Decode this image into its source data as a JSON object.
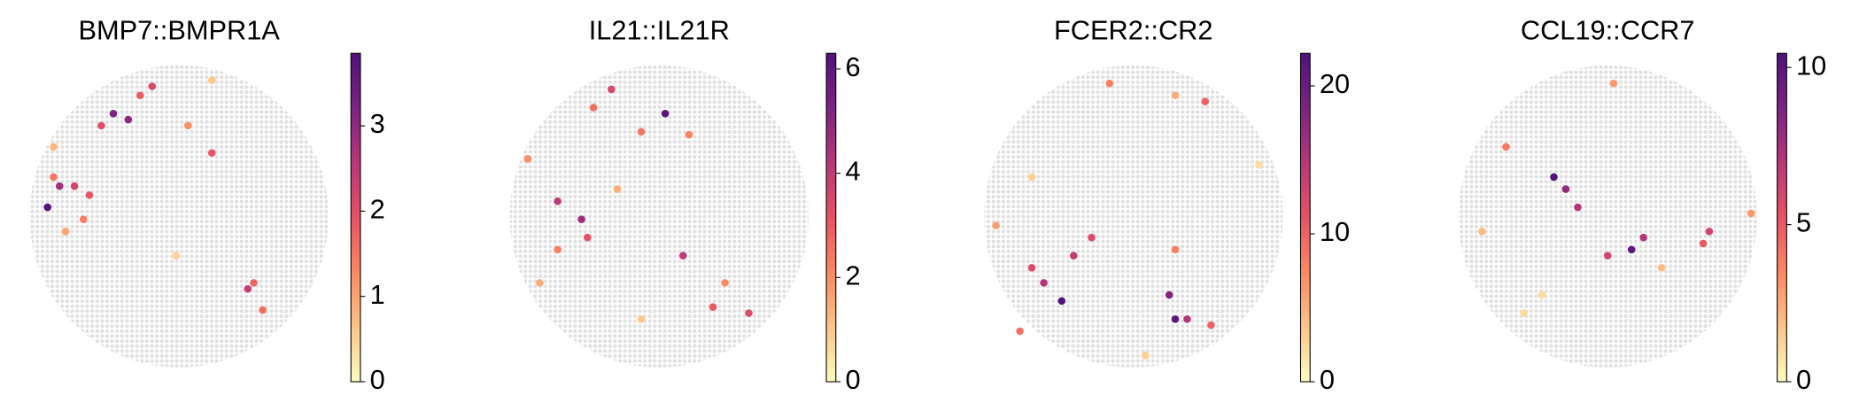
{
  "chart_data": [
    {
      "type": "scatter",
      "title": "BMP7::BMPR1A",
      "xlim": [
        0,
        100
      ],
      "ylim": [
        0,
        100
      ],
      "x": [
        6,
        28,
        33,
        10,
        15,
        20,
        8,
        24,
        37,
        41,
        73,
        75,
        61,
        53,
        12,
        49,
        78,
        61,
        18,
        8
      ],
      "y": [
        53,
        84,
        82,
        60,
        60,
        57,
        63,
        80,
        90,
        93,
        26,
        28,
        71,
        80,
        45,
        37,
        19,
        95,
        49,
        73
      ],
      "values": [
        3.8,
        3.2,
        3.0,
        2.8,
        2.2,
        1.9,
        1.5,
        2.0,
        1.8,
        2.1,
        2.4,
        1.7,
        1.9,
        1.2,
        1.0,
        0.5,
        1.6,
        0.6,
        1.4,
        0.8
      ],
      "clim": [
        0,
        3.85
      ],
      "cticks": [
        0,
        1,
        2,
        3
      ],
      "colormap": [
        "#fcfdbf",
        "#fec488",
        "#fc8961",
        "#e75263",
        "#b73779",
        "#7c2382",
        "#51127c"
      ],
      "background_color": "#e0e0e0"
    },
    {
      "type": "scatter",
      "title": "IL21::IL21R",
      "xlim": [
        0,
        100
      ],
      "ylim": [
        0,
        100
      ],
      "x": [
        52,
        24,
        16,
        58,
        34,
        26,
        68,
        80,
        6,
        44,
        10,
        72,
        36,
        60,
        28,
        44,
        16
      ],
      "y": [
        84,
        49,
        55,
        37,
        92,
        43,
        20,
        18,
        69,
        78,
        28,
        28,
        59,
        77,
        86,
        16,
        39
      ],
      "values": [
        6.1,
        4.6,
        4.1,
        4.0,
        3.5,
        3.2,
        3.0,
        3.4,
        2.0,
        2.5,
        1.5,
        2.1,
        1.4,
        2.2,
        2.6,
        1.0,
        2.3
      ],
      "clim": [
        0,
        6.3
      ],
      "cticks": [
        0,
        2,
        4,
        6
      ],
      "colormap": [
        "#fcfdbf",
        "#fec488",
        "#fc8961",
        "#e75263",
        "#b73779",
        "#7c2382",
        "#51127c"
      ],
      "background_color": "#e0e0e0"
    },
    {
      "type": "scatter",
      "title": "FCER2::CR2",
      "xlim": [
        0,
        100
      ],
      "ylim": [
        0,
        100
      ],
      "x": [
        26,
        64,
        62,
        20,
        30,
        36,
        16,
        68,
        76,
        42,
        74,
        54,
        64,
        4,
        92,
        16,
        64,
        12
      ],
      "y": [
        22,
        16,
        24,
        28,
        37,
        43,
        33,
        16,
        14,
        94,
        88,
        4,
        39,
        47,
        67,
        63,
        90,
        12
      ],
      "values": [
        22,
        21,
        18,
        15,
        14,
        12,
        12,
        15,
        10,
        8,
        10,
        3,
        8,
        6,
        2,
        3,
        5,
        9
      ],
      "clim": [
        0,
        22.2
      ],
      "cticks": [
        0,
        10,
        20
      ],
      "colormap": [
        "#fcfdbf",
        "#fec488",
        "#fc8961",
        "#e75263",
        "#b73779",
        "#7c2382",
        "#51127c"
      ],
      "background_color": "#e0e0e0"
    },
    {
      "type": "scatter",
      "title": "CCL19::CCR7",
      "xlim": [
        0,
        100
      ],
      "ylim": [
        0,
        100
      ],
      "x": [
        32,
        58,
        36,
        40,
        62,
        84,
        82,
        50,
        16,
        52,
        98,
        8,
        68,
        28,
        22
      ],
      "y": [
        63,
        39,
        59,
        53,
        43,
        45,
        41,
        37,
        73,
        94,
        51,
        45,
        33,
        24,
        18
      ],
      "values": [
        10.4,
        10,
        8,
        7,
        7,
        6,
        5,
        6,
        4,
        3,
        3,
        2,
        2,
        1,
        1
      ],
      "clim": [
        0,
        10.45
      ],
      "cticks": [
        0,
        5,
        10
      ],
      "colormap": [
        "#fcfdbf",
        "#fec488",
        "#fc8961",
        "#e75263",
        "#b73779",
        "#7c2382",
        "#51127c"
      ],
      "background_color": "#e0e0e0"
    }
  ]
}
